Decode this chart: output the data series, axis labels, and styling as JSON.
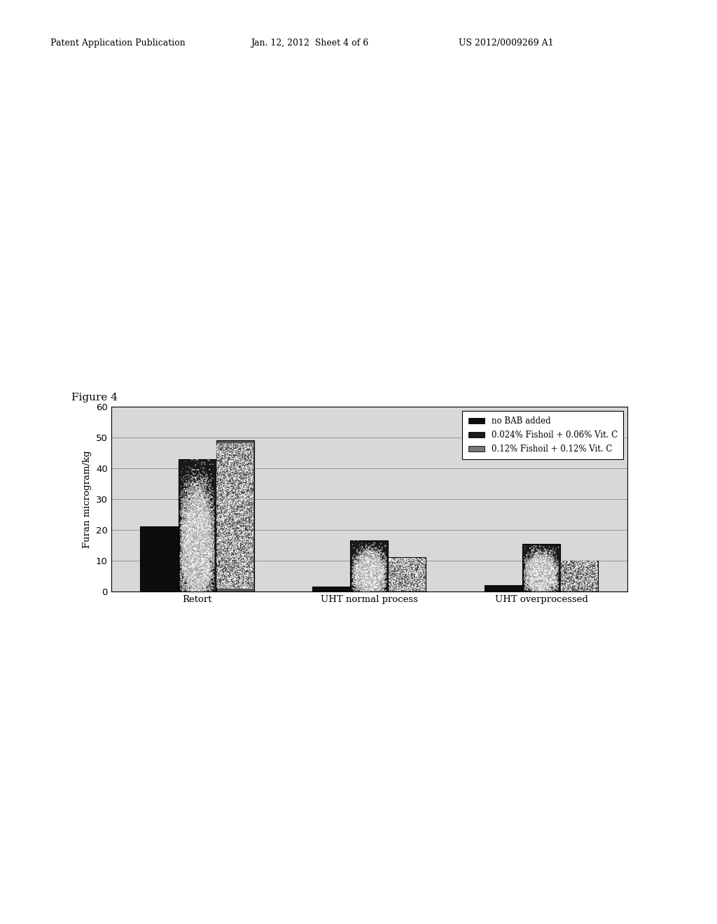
{
  "header_left": "Patent Application Publication",
  "header_center": "Jan. 12, 2012  Sheet 4 of 6",
  "header_right": "US 2012/0009269 A1",
  "figure_label": "Figure 4",
  "ylabel": "Furan microgram/kg",
  "categories": [
    "Retort",
    "UHT normal process",
    "UHT overprocessed"
  ],
  "series": [
    {
      "label": "no BAB added",
      "values": [
        21,
        1.5,
        2
      ],
      "color": "#111111"
    },
    {
      "label": "0.024% Fishoil + 0.06% Vit. C",
      "values": [
        43,
        16.5,
        15.5
      ],
      "color": "#222222"
    },
    {
      "label": "0.12% Fishoil + 0.12% Vit. C",
      "values": [
        49,
        11,
        10
      ],
      "color": "#777777"
    }
  ],
  "ylim": [
    0,
    60
  ],
  "yticks": [
    0,
    10,
    20,
    30,
    40,
    50,
    60
  ],
  "background_color": "#ffffff",
  "bar_width": 0.22
}
